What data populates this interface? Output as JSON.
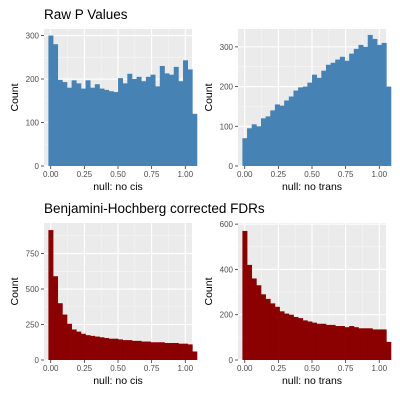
{
  "titles": {
    "raw": "Raw P Values",
    "bh": "Benjamini-Hochberg corrected FDRs"
  },
  "colors": {
    "raw_fill": "#4682B4",
    "fdr_fill": "#8B0000",
    "panel_bg": "#EBEBEB",
    "grid_major": "#FFFFFF",
    "grid_minor": "#F5F5F5",
    "tick_text": "#4D4D4D",
    "tick_mark": "#333333"
  },
  "chart_data": [
    {
      "id": "raw-cis",
      "type": "bar",
      "section": "Raw P Values",
      "xlabel": "null: no cis",
      "ylabel": "Count",
      "xlim": [
        -0.05,
        1.05
      ],
      "ylim": [
        0,
        315
      ],
      "xticks": [
        0,
        0.25,
        0.5,
        0.75,
        1
      ],
      "xtick_labels": [
        "0.00",
        "0.25",
        "0.50",
        "0.75",
        "1.00"
      ],
      "yticks": [
        0,
        100,
        200,
        300
      ],
      "bin_width": 0.0345,
      "values": [
        300,
        280,
        198,
        193,
        180,
        197,
        190,
        178,
        197,
        180,
        188,
        178,
        175,
        172,
        170,
        202,
        190,
        212,
        200,
        205,
        195,
        205,
        210,
        183,
        230,
        213,
        210,
        228,
        195,
        243,
        222,
        120
      ],
      "grid": true
    },
    {
      "id": "raw-trans",
      "type": "bar",
      "section": "Raw P Values",
      "xlabel": "null: no trans",
      "ylabel": "Count",
      "xlim": [
        -0.05,
        1.05
      ],
      "ylim": [
        0,
        345
      ],
      "xticks": [
        0,
        0.25,
        0.5,
        0.75,
        1
      ],
      "xtick_labels": [
        "0.00",
        "0.25",
        "0.50",
        "0.75",
        "1.00"
      ],
      "yticks": [
        0,
        100,
        200,
        300
      ],
      "bin_width": 0.0345,
      "values": [
        70,
        95,
        105,
        100,
        120,
        125,
        140,
        155,
        152,
        165,
        175,
        190,
        198,
        200,
        210,
        230,
        222,
        240,
        255,
        260,
        268,
        275,
        265,
        283,
        295,
        305,
        300,
        330,
        320,
        305,
        310,
        200
      ],
      "grid": true
    },
    {
      "id": "fdr-cis",
      "type": "bar",
      "section": "Benjamini-Hochberg corrected FDRs",
      "xlabel": "null: no cis",
      "ylabel": "Count",
      "xlim": [
        -0.05,
        1.05
      ],
      "ylim": [
        0,
        965
      ],
      "xticks": [
        0,
        0.25,
        0.5,
        0.75,
        1
      ],
      "xtick_labels": [
        "0.00",
        "0.25",
        "0.50",
        "0.75",
        "1.00"
      ],
      "yticks": [
        0,
        250,
        500,
        750
      ],
      "bin_width": 0.0345,
      "values": [
        915,
        590,
        400,
        320,
        255,
        215,
        200,
        185,
        175,
        170,
        165,
        160,
        155,
        150,
        150,
        145,
        140,
        140,
        135,
        135,
        130,
        130,
        125,
        125,
        125,
        120,
        120,
        120,
        115,
        115,
        110,
        60
      ],
      "grid": true
    },
    {
      "id": "fdr-trans",
      "type": "bar",
      "section": "Benjamini-Hochberg corrected FDRs",
      "xlabel": "null: no trans",
      "ylabel": "Count",
      "xlim": [
        -0.05,
        1.05
      ],
      "ylim": [
        0,
        605
      ],
      "xticks": [
        0,
        0.25,
        0.5,
        0.75,
        1
      ],
      "xtick_labels": [
        "0.00",
        "0.25",
        "0.50",
        "0.75",
        "1.00"
      ],
      "yticks": [
        0,
        200,
        400,
        600
      ],
      "bin_width": 0.0345,
      "values": [
        570,
        420,
        360,
        330,
        290,
        270,
        250,
        235,
        215,
        205,
        200,
        190,
        185,
        175,
        170,
        165,
        160,
        160,
        155,
        155,
        150,
        150,
        145,
        150,
        145,
        140,
        140,
        140,
        135,
        135,
        135,
        80
      ],
      "grid": true
    }
  ]
}
